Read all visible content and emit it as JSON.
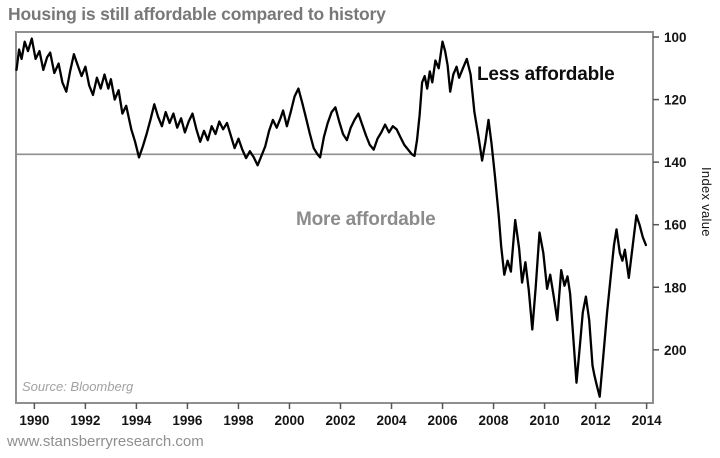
{
  "page": {
    "footer_url": "www.stansberryresearch.com"
  },
  "chart_data": {
    "type": "line",
    "title": "Housing is still affordable compared to history",
    "xlabel": "",
    "ylabel": "Index value",
    "source": "Source: Bloomberg",
    "grid": false,
    "legend": false,
    "line_color": "#000000",
    "frame_color": "#8f8f8f",
    "annotations": {
      "less": "Less affordable",
      "more": "More affordable"
    },
    "reference_line": {
      "value": 137.5,
      "color": "#8f8f8f"
    },
    "x_axis": {
      "min": 1989.28,
      "max": 2014.25,
      "ticks": [
        1990,
        1992,
        1994,
        1996,
        1998,
        2000,
        2002,
        2004,
        2006,
        2008,
        2010,
        2012,
        2014
      ]
    },
    "y_axis": {
      "reversed": true,
      "side": "right",
      "top_value": 98.4,
      "bottom_value": 217,
      "ticks": [
        100,
        120,
        140,
        160,
        180,
        200
      ]
    },
    "series": [
      {
        "points": [
          [
            1989.3,
            110.5
          ],
          [
            1989.4,
            104
          ],
          [
            1989.5,
            107
          ],
          [
            1989.62,
            101.5
          ],
          [
            1989.75,
            104.5
          ],
          [
            1989.9,
            100.5
          ],
          [
            1990.05,
            107
          ],
          [
            1990.2,
            104.5
          ],
          [
            1990.35,
            110.5
          ],
          [
            1990.5,
            106.5
          ],
          [
            1990.62,
            105
          ],
          [
            1990.78,
            111.5
          ],
          [
            1990.95,
            108.5
          ],
          [
            1991.1,
            114.5
          ],
          [
            1991.25,
            117.5
          ],
          [
            1991.4,
            111
          ],
          [
            1991.55,
            105.5
          ],
          [
            1991.7,
            109
          ],
          [
            1991.85,
            112.5
          ],
          [
            1992.0,
            109.5
          ],
          [
            1992.15,
            115.5
          ],
          [
            1992.3,
            118.5
          ],
          [
            1992.45,
            113
          ],
          [
            1992.6,
            116.5
          ],
          [
            1992.75,
            112
          ],
          [
            1992.9,
            116.5
          ],
          [
            1993.0,
            113.5
          ],
          [
            1993.15,
            120
          ],
          [
            1993.3,
            117
          ],
          [
            1993.45,
            124.5
          ],
          [
            1993.6,
            122
          ],
          [
            1993.8,
            129.5
          ],
          [
            1993.95,
            133.5
          ],
          [
            1994.1,
            138.5
          ],
          [
            1994.25,
            135
          ],
          [
            1994.4,
            131
          ],
          [
            1994.55,
            126.5
          ],
          [
            1994.7,
            121.5
          ],
          [
            1994.85,
            125.5
          ],
          [
            1995.0,
            128.5
          ],
          [
            1995.15,
            124
          ],
          [
            1995.3,
            127.5
          ],
          [
            1995.45,
            124.5
          ],
          [
            1995.6,
            129
          ],
          [
            1995.75,
            126
          ],
          [
            1995.9,
            130.5
          ],
          [
            1996.05,
            127
          ],
          [
            1996.2,
            124.5
          ],
          [
            1996.35,
            129.5
          ],
          [
            1996.5,
            133.5
          ],
          [
            1996.65,
            130
          ],
          [
            1996.8,
            133
          ],
          [
            1996.95,
            128.5
          ],
          [
            1997.1,
            131
          ],
          [
            1997.25,
            127
          ],
          [
            1997.4,
            129.5
          ],
          [
            1997.55,
            127.5
          ],
          [
            1997.7,
            131.5
          ],
          [
            1997.85,
            135.5
          ],
          [
            1998.0,
            132.5
          ],
          [
            1998.15,
            136
          ],
          [
            1998.3,
            138.7
          ],
          [
            1998.45,
            136.5
          ],
          [
            1998.6,
            138.5
          ],
          [
            1998.75,
            141
          ],
          [
            1998.9,
            138
          ],
          [
            1999.05,
            135
          ],
          [
            1999.2,
            130
          ],
          [
            1999.35,
            126.5
          ],
          [
            1999.5,
            129
          ],
          [
            1999.65,
            126
          ],
          [
            1999.75,
            123.5
          ],
          [
            1999.9,
            128.5
          ],
          [
            2000.05,
            124
          ],
          [
            2000.2,
            119
          ],
          [
            2000.35,
            116.5
          ],
          [
            2000.5,
            121
          ],
          [
            2000.65,
            126
          ],
          [
            2000.8,
            131
          ],
          [
            2000.95,
            135.5
          ],
          [
            2001.1,
            137.5
          ],
          [
            2001.2,
            138.5
          ],
          [
            2001.35,
            132
          ],
          [
            2001.5,
            127.5
          ],
          [
            2001.65,
            124
          ],
          [
            2001.8,
            122.5
          ],
          [
            2001.95,
            127
          ],
          [
            2002.1,
            131
          ],
          [
            2002.25,
            133
          ],
          [
            2002.4,
            129
          ],
          [
            2002.55,
            126.5
          ],
          [
            2002.7,
            124.5
          ],
          [
            2002.85,
            128
          ],
          [
            2003.0,
            131.5
          ],
          [
            2003.15,
            134.5
          ],
          [
            2003.3,
            136
          ],
          [
            2003.45,
            132.5
          ],
          [
            2003.6,
            130.5
          ],
          [
            2003.75,
            128
          ],
          [
            2003.9,
            130.5
          ],
          [
            2004.05,
            128.5
          ],
          [
            2004.2,
            129.5
          ],
          [
            2004.35,
            132
          ],
          [
            2004.5,
            134.5
          ],
          [
            2004.65,
            136
          ],
          [
            2004.8,
            137.5
          ],
          [
            2004.9,
            138
          ],
          [
            2005.0,
            133
          ],
          [
            2005.1,
            125
          ],
          [
            2005.2,
            114.5
          ],
          [
            2005.3,
            112.5
          ],
          [
            2005.4,
            116.5
          ],
          [
            2005.5,
            111
          ],
          [
            2005.6,
            114.5
          ],
          [
            2005.72,
            107.5
          ],
          [
            2005.85,
            110
          ],
          [
            2006.0,
            101.5
          ],
          [
            2006.1,
            104.5
          ],
          [
            2006.2,
            109
          ],
          [
            2006.3,
            117.5
          ],
          [
            2006.42,
            112
          ],
          [
            2006.55,
            109.5
          ],
          [
            2006.65,
            113
          ],
          [
            2006.8,
            110
          ],
          [
            2006.95,
            107
          ],
          [
            2007.1,
            112
          ],
          [
            2007.25,
            124
          ],
          [
            2007.4,
            131.5
          ],
          [
            2007.55,
            139.5
          ],
          [
            2007.68,
            133.5
          ],
          [
            2007.8,
            126.5
          ],
          [
            2007.92,
            134
          ],
          [
            2008.05,
            144
          ],
          [
            2008.2,
            157
          ],
          [
            2008.3,
            167
          ],
          [
            2008.42,
            176
          ],
          [
            2008.55,
            171.5
          ],
          [
            2008.68,
            175
          ],
          [
            2008.85,
            158.5
          ],
          [
            2009.0,
            167.5
          ],
          [
            2009.12,
            178.5
          ],
          [
            2009.25,
            172
          ],
          [
            2009.38,
            181
          ],
          [
            2009.52,
            193.5
          ],
          [
            2009.65,
            180
          ],
          [
            2009.8,
            162.5
          ],
          [
            2009.95,
            169
          ],
          [
            2010.1,
            180.5
          ],
          [
            2010.22,
            176
          ],
          [
            2010.35,
            182.5
          ],
          [
            2010.5,
            190.5
          ],
          [
            2010.65,
            174.5
          ],
          [
            2010.78,
            179.5
          ],
          [
            2010.9,
            176.5
          ],
          [
            2011.0,
            182
          ],
          [
            2011.1,
            193
          ],
          [
            2011.25,
            210.5
          ],
          [
            2011.38,
            199
          ],
          [
            2011.5,
            188
          ],
          [
            2011.62,
            183
          ],
          [
            2011.75,
            190.5
          ],
          [
            2011.88,
            205
          ],
          [
            2011.95,
            208
          ],
          [
            2012.05,
            211.5
          ],
          [
            2012.16,
            215
          ],
          [
            2012.3,
            202
          ],
          [
            2012.45,
            188
          ],
          [
            2012.6,
            176
          ],
          [
            2012.72,
            166.5
          ],
          [
            2012.82,
            161.5
          ],
          [
            2012.95,
            169
          ],
          [
            2013.05,
            171.5
          ],
          [
            2013.15,
            168
          ],
          [
            2013.3,
            177
          ],
          [
            2013.45,
            167
          ],
          [
            2013.6,
            157
          ],
          [
            2013.72,
            160
          ],
          [
            2013.85,
            164
          ],
          [
            2013.97,
            166.5
          ]
        ]
      }
    ]
  }
}
